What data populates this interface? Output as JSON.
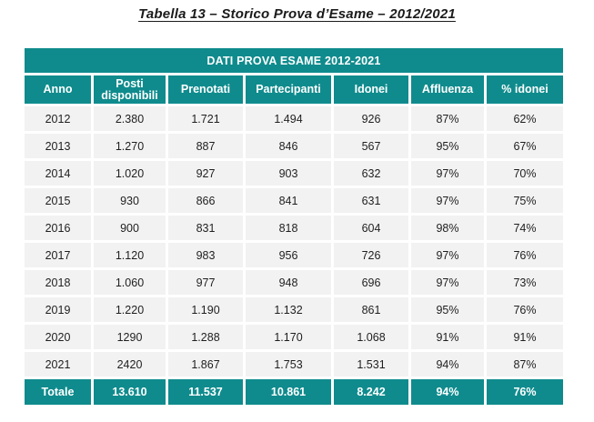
{
  "page_title": "Tabella 13 – Storico Prova d’Esame – 2012/2021",
  "colors": {
    "teal": "#0f8b8d",
    "row_bg": "#f2f2f2",
    "header_text": "#ffffff",
    "body_text": "#1f1f1f"
  },
  "table": {
    "banner": "DATI PROVA ESAME 2012-2021",
    "columns": [
      "Anno",
      "Posti disponibili",
      "Prenotati",
      "Partecipanti",
      "Idonei",
      "Affluenza",
      "% idonei"
    ],
    "rows": [
      [
        "2012",
        "2.380",
        "1.721",
        "1.494",
        "926",
        "87%",
        "62%"
      ],
      [
        "2013",
        "1.270",
        "887",
        "846",
        "567",
        "95%",
        "67%"
      ],
      [
        "2014",
        "1.020",
        "927",
        "903",
        "632",
        "97%",
        "70%"
      ],
      [
        "2015",
        "930",
        "866",
        "841",
        "631",
        "97%",
        "75%"
      ],
      [
        "2016",
        "900",
        "831",
        "818",
        "604",
        "98%",
        "74%"
      ],
      [
        "2017",
        "1.120",
        "983",
        "956",
        "726",
        "97%",
        "76%"
      ],
      [
        "2018",
        "1.060",
        "977",
        "948",
        "696",
        "97%",
        "73%"
      ],
      [
        "2019",
        "1.220",
        "1.190",
        "1.132",
        "861",
        "95%",
        "76%"
      ],
      [
        "2020",
        "1290",
        "1.288",
        "1.170",
        "1.068",
        "91%",
        "91%"
      ],
      [
        "2021",
        "2420",
        "1.867",
        "1.753",
        "1.531",
        "94%",
        "87%"
      ]
    ],
    "total": [
      "Totale",
      "13.610",
      "11.537",
      "10.861",
      "8.242",
      "94%",
      "76%"
    ]
  }
}
